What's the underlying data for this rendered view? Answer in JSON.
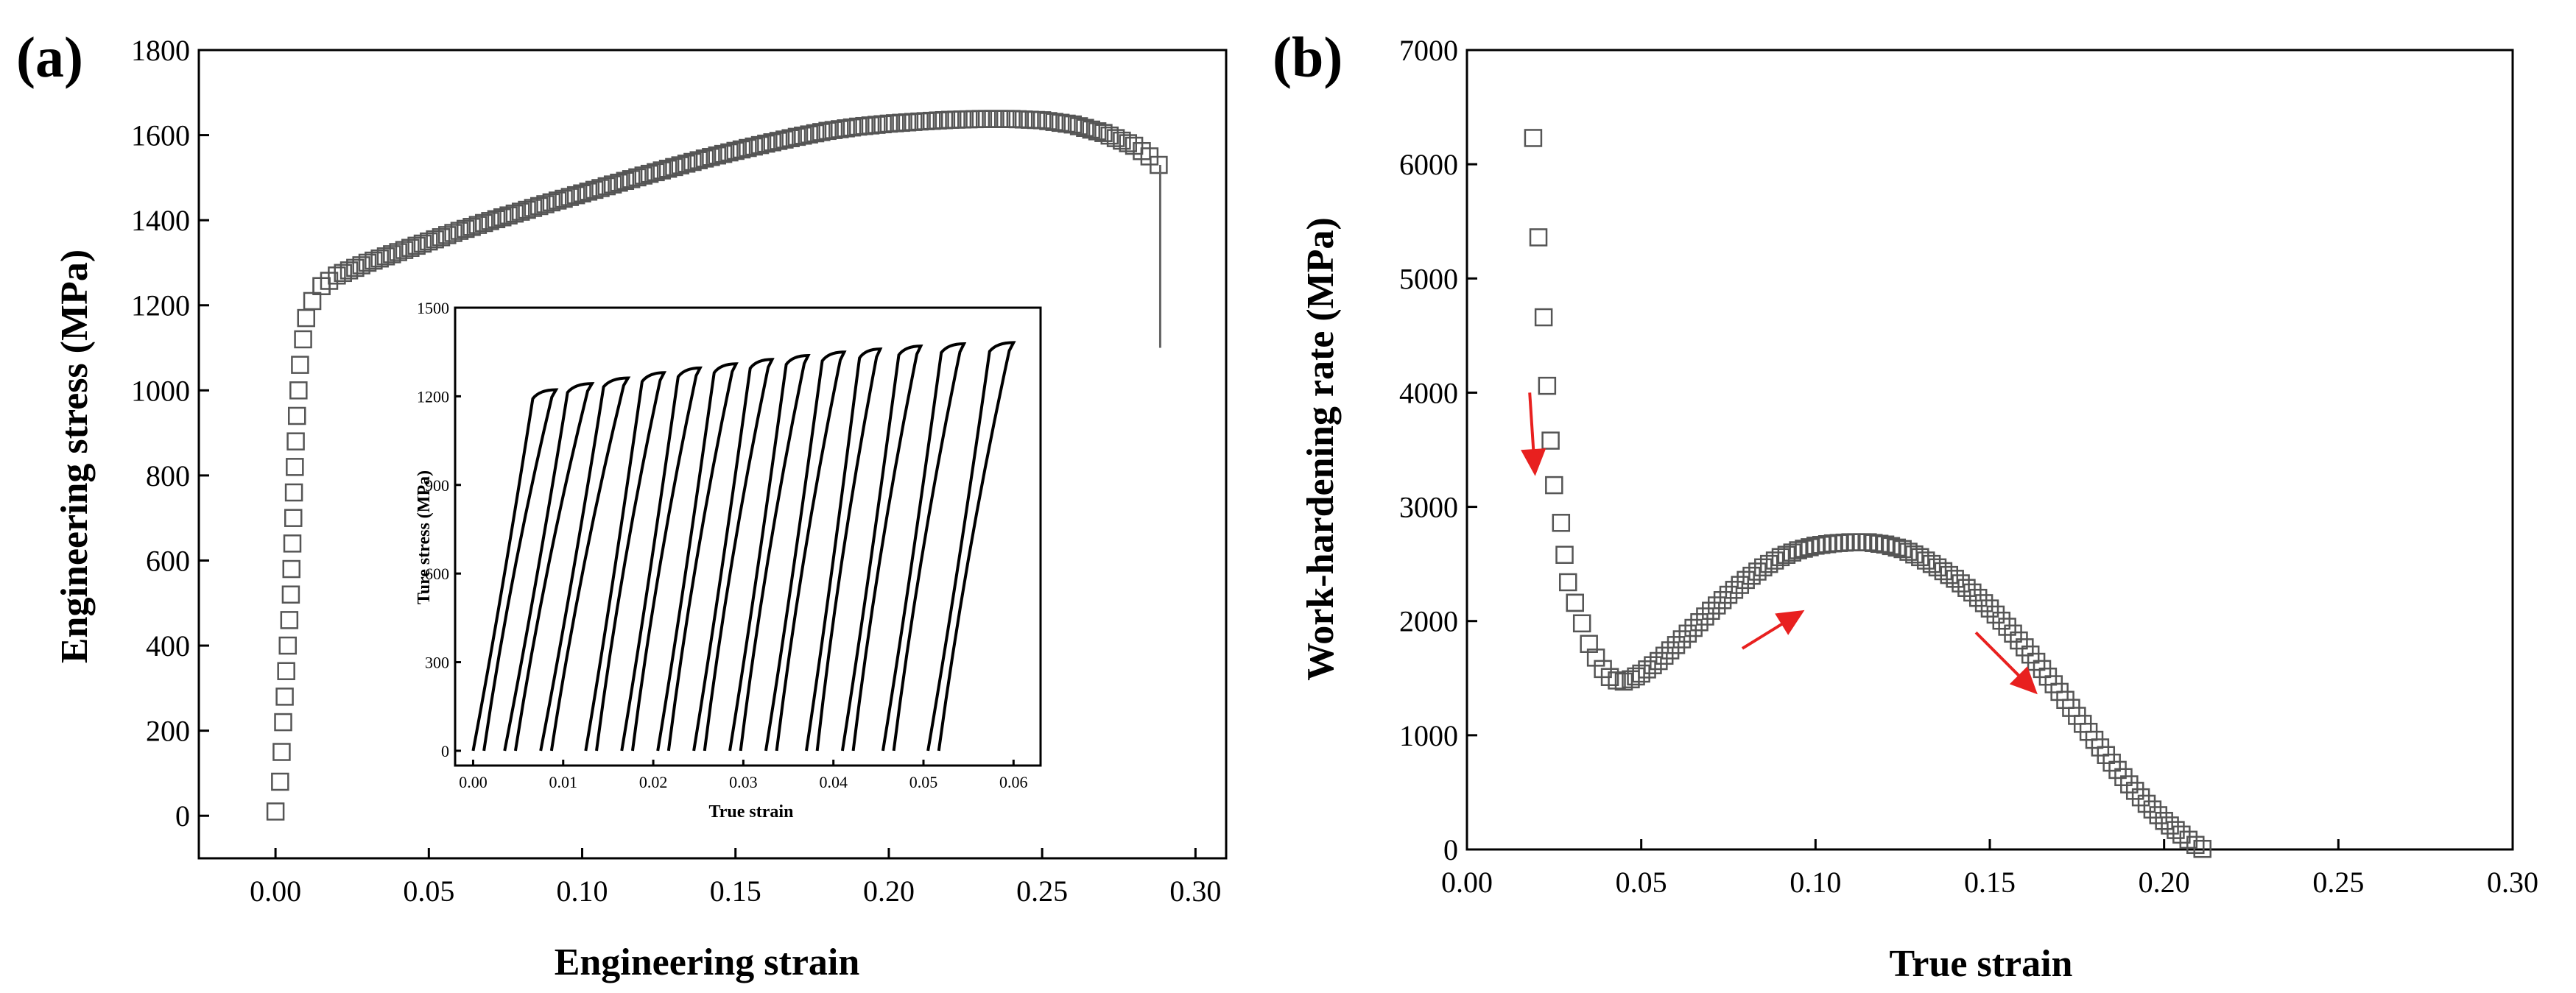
{
  "chart_data": [
    {
      "id": "a",
      "type": "scatter",
      "panel_label": "(a)",
      "title": "",
      "xlabel": "Engineering strain",
      "ylabel": "Engineering stress (MPa)",
      "xlim": [
        -0.025,
        0.31
      ],
      "ylim": [
        -100,
        1800
      ],
      "x_ticks": [
        0.0,
        0.05,
        0.1,
        0.15,
        0.2,
        0.25,
        0.3
      ],
      "x_tick_labels": [
        "0.00",
        "0.05",
        "0.10",
        "0.15",
        "0.20",
        "0.25",
        "0.30"
      ],
      "y_ticks": [
        0,
        200,
        400,
        600,
        800,
        1000,
        1200,
        1400,
        1600,
        1800
      ],
      "y_tick_labels": [
        "0",
        "200",
        "400",
        "600",
        "800",
        "1000",
        "1200",
        "1400",
        "1600",
        "1800"
      ],
      "series": [
        {
          "name": "engineering stress-strain",
          "marker": "open-square",
          "points": [
            [
              0.0,
              10
            ],
            [
              0.0015,
              80
            ],
            [
              0.002,
              150
            ],
            [
              0.0025,
              220
            ],
            [
              0.003,
              280
            ],
            [
              0.0035,
              340
            ],
            [
              0.004,
              400
            ],
            [
              0.0045,
              460
            ],
            [
              0.005,
              520
            ],
            [
              0.0052,
              580
            ],
            [
              0.0055,
              640
            ],
            [
              0.0058,
              700
            ],
            [
              0.006,
              760
            ],
            [
              0.0063,
              820
            ],
            [
              0.0066,
              880
            ],
            [
              0.007,
              940
            ],
            [
              0.0075,
              1000
            ],
            [
              0.008,
              1060
            ],
            [
              0.009,
              1120
            ],
            [
              0.01,
              1170
            ],
            [
              0.012,
              1210
            ],
            [
              0.015,
              1245
            ],
            [
              0.02,
              1270
            ],
            [
              0.03,
              1300
            ],
            [
              0.04,
              1325
            ],
            [
              0.05,
              1350
            ],
            [
              0.06,
              1375
            ],
            [
              0.07,
              1398
            ],
            [
              0.08,
              1420
            ],
            [
              0.09,
              1442
            ],
            [
              0.1,
              1463
            ],
            [
              0.11,
              1484
            ],
            [
              0.12,
              1505
            ],
            [
              0.13,
              1525
            ],
            [
              0.14,
              1545
            ],
            [
              0.15,
              1563
            ],
            [
              0.16,
              1580
            ],
            [
              0.17,
              1596
            ],
            [
              0.18,
              1610
            ],
            [
              0.19,
              1620
            ],
            [
              0.2,
              1627
            ],
            [
              0.21,
              1632
            ],
            [
              0.22,
              1636
            ],
            [
              0.23,
              1638
            ],
            [
              0.24,
              1638
            ],
            [
              0.25,
              1635
            ],
            [
              0.26,
              1625
            ],
            [
              0.27,
              1605
            ],
            [
              0.28,
              1575
            ],
            [
              0.285,
              1550
            ],
            [
              0.288,
              1530
            ]
          ]
        }
      ],
      "fracture_drop": {
        "x": 0.2885,
        "y_from": 1530,
        "y_to": 1100
      },
      "inset": {
        "type": "line",
        "title": "",
        "xlabel": "True strain",
        "ylabel": "Ture stress (MPa)",
        "xlim": [
          -0.002,
          0.063
        ],
        "ylim": [
          -50,
          1500
        ],
        "x_ticks": [
          0.0,
          0.01,
          0.02,
          0.03,
          0.04,
          0.05,
          0.06
        ],
        "x_tick_labels": [
          "0.00",
          "0.01",
          "0.02",
          "0.03",
          "0.04",
          "0.05",
          "0.06"
        ],
        "y_ticks": [
          0,
          300,
          600,
          900,
          1200,
          1500
        ],
        "y_tick_labels": [
          "0",
          "300",
          "600",
          "900",
          "1200",
          "1500"
        ],
        "description": "loading-unloading cycles",
        "loop_starts": [
          0.0,
          0.0035,
          0.0075,
          0.0125,
          0.0165,
          0.0205,
          0.0245,
          0.0285,
          0.0325,
          0.037,
          0.041,
          0.0455,
          0.0505
        ],
        "loop_peaks": [
          [
            0.0092,
            1222
          ],
          [
            0.0132,
            1243
          ],
          [
            0.0172,
            1262
          ],
          [
            0.0212,
            1280
          ],
          [
            0.0252,
            1296
          ],
          [
            0.0292,
            1310
          ],
          [
            0.0332,
            1325
          ],
          [
            0.0372,
            1338
          ],
          [
            0.0412,
            1350
          ],
          [
            0.0452,
            1360
          ],
          [
            0.0497,
            1370
          ],
          [
            0.0545,
            1378
          ],
          [
            0.06,
            1382
          ]
        ]
      }
    },
    {
      "id": "b",
      "type": "scatter",
      "panel_label": "(b)",
      "title": "",
      "xlabel": "True strain",
      "ylabel": "Work-hardening rate (MPa)",
      "xlim": [
        0.0,
        0.3
      ],
      "ylim": [
        0,
        7000
      ],
      "x_ticks": [
        0.0,
        0.05,
        0.1,
        0.15,
        0.2,
        0.25,
        0.3
      ],
      "x_tick_labels": [
        "0.00",
        "0.05",
        "0.10",
        "0.15",
        "0.20",
        "0.25",
        "0.30"
      ],
      "y_ticks": [
        0,
        1000,
        2000,
        3000,
        4000,
        5000,
        6000,
        7000
      ],
      "y_tick_labels": [
        "0",
        "1000",
        "2000",
        "3000",
        "4000",
        "5000",
        "6000",
        "7000"
      ],
      "series": [
        {
          "name": "work-hardening rate",
          "marker": "open-square",
          "points": [
            [
              0.019,
              6230
            ],
            [
              0.0205,
              5360
            ],
            [
              0.022,
              4660
            ],
            [
              0.023,
              4060
            ],
            [
              0.024,
              3580
            ],
            [
              0.025,
              3190
            ],
            [
              0.027,
              2860
            ],
            [
              0.028,
              2580
            ],
            [
              0.029,
              2340
            ],
            [
              0.031,
              2160
            ],
            [
              0.033,
              1980
            ],
            [
              0.035,
              1800
            ],
            [
              0.037,
              1680
            ],
            [
              0.039,
              1580
            ],
            [
              0.041,
              1510
            ],
            [
              0.043,
              1480
            ],
            [
              0.045,
              1470
            ],
            [
              0.047,
              1490
            ],
            [
              0.05,
              1540
            ],
            [
              0.055,
              1650
            ],
            [
              0.06,
              1790
            ],
            [
              0.065,
              1940
            ],
            [
              0.07,
              2090
            ],
            [
              0.075,
              2230
            ],
            [
              0.08,
              2360
            ],
            [
              0.085,
              2470
            ],
            [
              0.09,
              2560
            ],
            [
              0.095,
              2620
            ],
            [
              0.1,
              2660
            ],
            [
              0.105,
              2680
            ],
            [
              0.11,
              2690
            ],
            [
              0.115,
              2690
            ],
            [
              0.12,
              2670
            ],
            [
              0.125,
              2630
            ],
            [
              0.13,
              2560
            ],
            [
              0.135,
              2470
            ],
            [
              0.14,
              2370
            ],
            [
              0.145,
              2250
            ],
            [
              0.15,
              2110
            ],
            [
              0.155,
              1950
            ],
            [
              0.16,
              1770
            ],
            [
              0.165,
              1580
            ],
            [
              0.17,
              1380
            ],
            [
              0.175,
              1170
            ],
            [
              0.18,
              960
            ],
            [
              0.185,
              760
            ],
            [
              0.19,
              570
            ],
            [
              0.195,
              400
            ],
            [
              0.2,
              250
            ],
            [
              0.205,
              130
            ],
            [
              0.209,
              40
            ],
            [
              0.211,
              5
            ]
          ]
        }
      ],
      "arrows": [
        {
          "from": [
            0.018,
            4000
          ],
          "to": [
            0.0195,
            3300
          ]
        },
        {
          "from": [
            0.079,
            1760
          ],
          "to": [
            0.096,
            2080
          ]
        },
        {
          "from": [
            0.146,
            1900
          ],
          "to": [
            0.163,
            1380
          ]
        }
      ],
      "arrow_color": "#e8201f"
    }
  ]
}
